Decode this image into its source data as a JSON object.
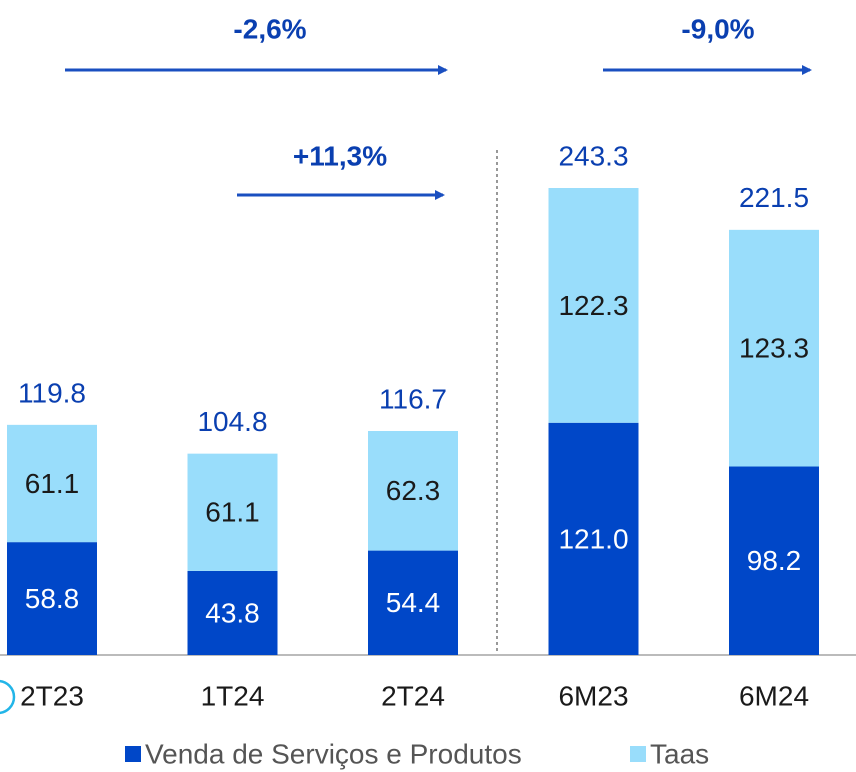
{
  "chart_data": {
    "type": "stacked_bar",
    "categories": [
      "2T23",
      "1T24",
      "2T24",
      "6M23",
      "6M24"
    ],
    "series": [
      {
        "name": "Venda de Serviços e Produtos",
        "color": "#0047c8",
        "values": [
          58.8,
          43.8,
          54.4,
          121.0,
          98.2
        ],
        "value_labels": [
          "58.8",
          "43.8",
          "54.4",
          "121.0",
          "98.2"
        ]
      },
      {
        "name": "Taas",
        "color": "#99ddfb",
        "values": [
          61.1,
          61.1,
          62.3,
          122.3,
          123.3
        ]
      }
    ],
    "totals": [
      119.8,
      104.8,
      116.7,
      243.3,
      221.5
    ],
    "annotations": [
      {
        "text": "-2,6%"
      },
      {
        "text": "+11,3%"
      },
      {
        "text": "-9,0%"
      }
    ]
  }
}
